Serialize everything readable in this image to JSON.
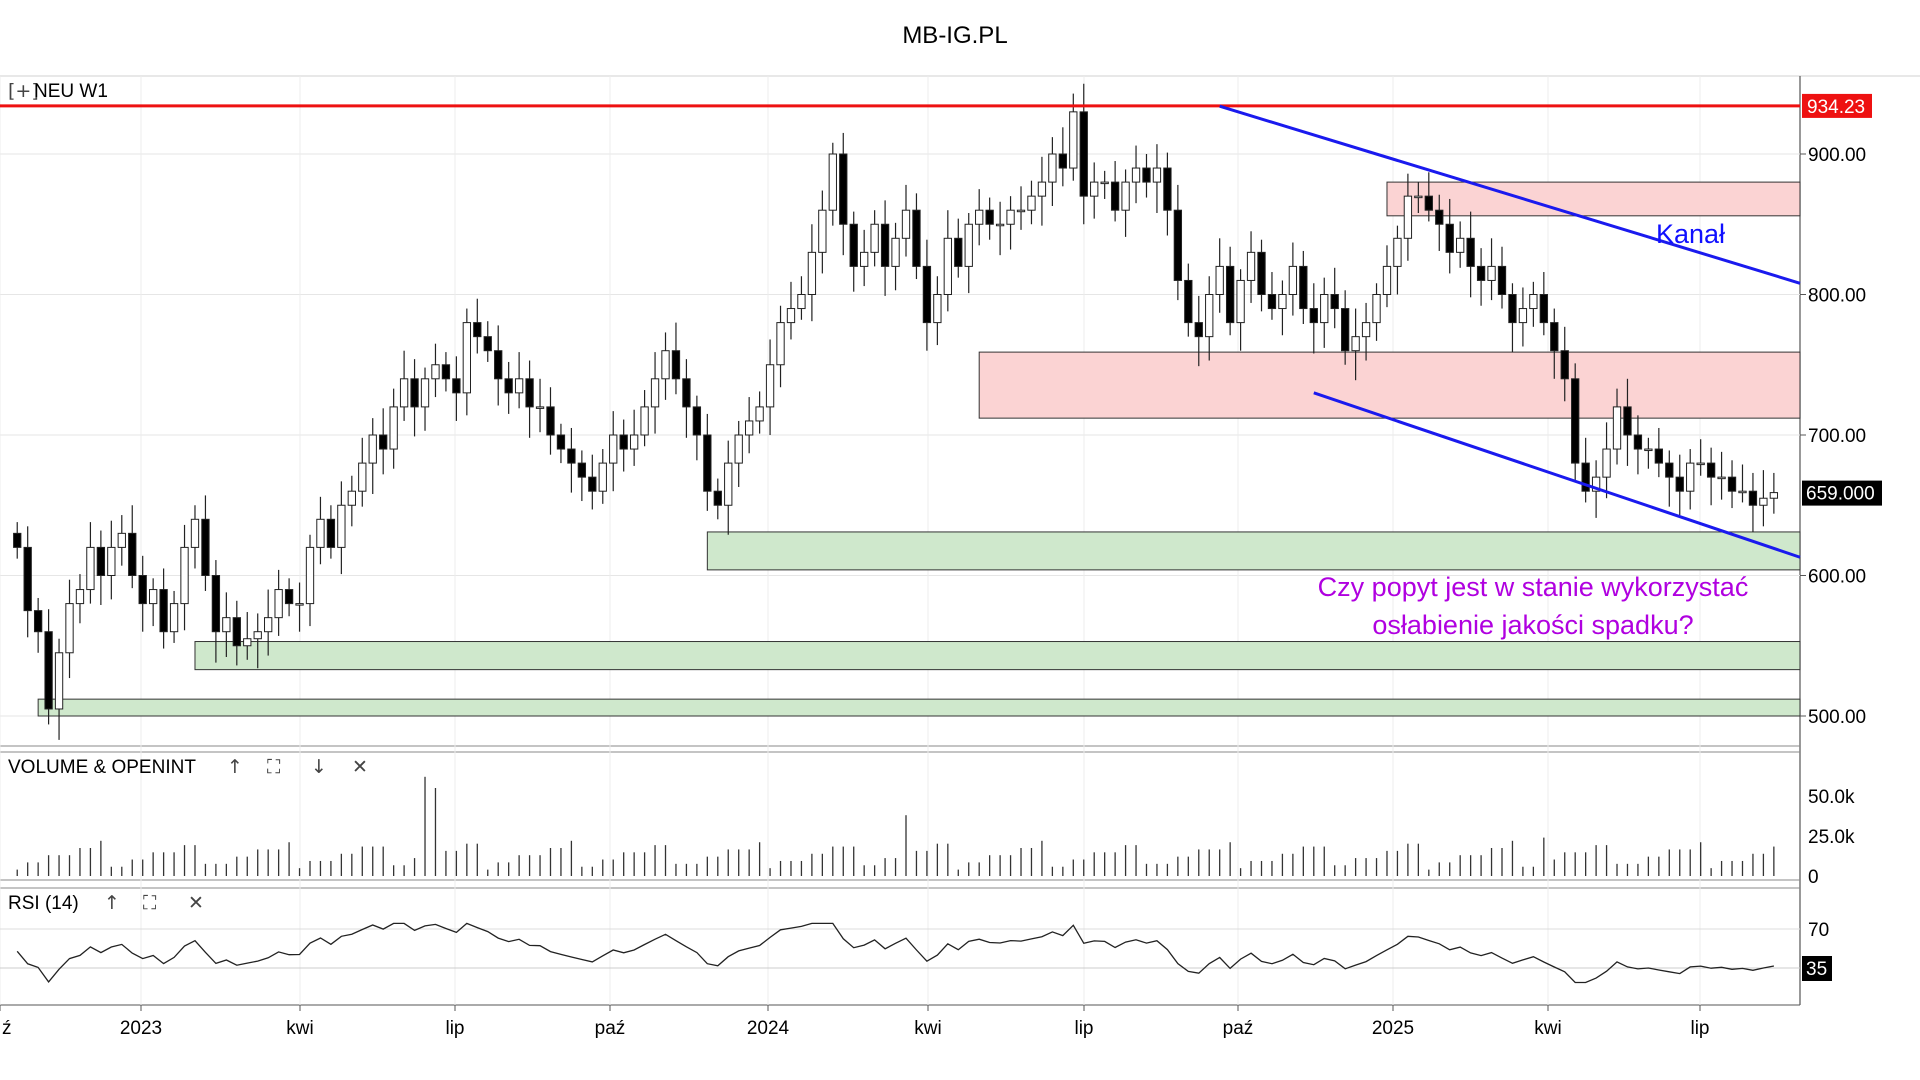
{
  "header": {
    "title": "MB-IG.PL"
  },
  "panels": {
    "price": {
      "label": "NEU  W1",
      "collapse_icon": "[+]"
    },
    "volume": {
      "label": "VOLUME & OPENINT"
    },
    "rsi": {
      "label": "RSI (14)"
    },
    "icons": {
      "up": "↑",
      "expand": "⛶",
      "down": "↓",
      "close": "✕"
    }
  },
  "colors": {
    "resistance_line": "#ee1111",
    "channel": "#1a1aee",
    "supply_zone": "#fbd3d3",
    "demand_zone": "#cfe8cc",
    "annotation": "#b000e0",
    "bull_candle": "#ffffff",
    "bear_candle": "#000000"
  },
  "annotations": {
    "channel_label": "Kanał",
    "question_line1": "Czy popyt jest w stanie wykorzystać",
    "question_line2": "osłabienie jakości spadku?"
  },
  "chart_data": [
    {
      "type": "candlestick",
      "title": "NEU  W1",
      "x_axis_ticks": [
        "ź",
        "2023",
        "kwi",
        "lip",
        "paź",
        "2024",
        "kwi",
        "lip",
        "paź",
        "2025",
        "kwi",
        "lip"
      ],
      "y_axis_ticks": [
        "500.00",
        "600.00",
        "700.00",
        "800.00",
        "900.00"
      ],
      "ylim": [
        487,
        940
      ],
      "last_price": "659.000",
      "resistance": {
        "value": 934.23,
        "label": "934.23"
      },
      "zones": [
        {
          "kind": "supply",
          "from_week": 131,
          "to_week": 200,
          "low": 856,
          "high": 880
        },
        {
          "kind": "supply",
          "from_week": 92,
          "to_week": 200,
          "low": 712,
          "high": 759
        },
        {
          "kind": "demand",
          "from_week": 66,
          "to_week": 200,
          "low": 604,
          "high": 631
        },
        {
          "kind": "demand",
          "from_week": 17,
          "to_week": 200,
          "low": 533,
          "high": 553
        },
        {
          "kind": "demand",
          "from_week": 2,
          "to_week": 200,
          "low": 500,
          "high": 512
        }
      ],
      "channel_lines": [
        {
          "name": "upper",
          "from": [
            115,
            934
          ],
          "to": [
            200,
            808
          ]
        },
        {
          "name": "lower",
          "from": [
            124,
            730
          ],
          "to": [
            200,
            613
          ]
        }
      ],
      "closes": [
        620,
        575,
        560,
        505,
        545,
        580,
        590,
        620,
        600,
        620,
        630,
        600,
        580,
        590,
        560,
        580,
        620,
        640,
        600,
        560,
        570,
        550,
        555,
        560,
        570,
        590,
        580,
        580,
        620,
        640,
        620,
        650,
        660,
        680,
        700,
        690,
        720,
        740,
        720,
        740,
        750,
        740,
        730,
        780,
        770,
        760,
        740,
        730,
        740,
        720,
        720,
        700,
        690,
        680,
        670,
        660,
        680,
        700,
        690,
        700,
        720,
        740,
        760,
        740,
        720,
        700,
        660,
        650,
        680,
        700,
        710,
        720,
        750,
        780,
        790,
        800,
        830,
        860,
        900,
        850,
        820,
        830,
        850,
        820,
        840,
        860,
        820,
        780,
        800,
        840,
        820,
        850,
        860,
        850,
        850,
        860,
        860,
        870,
        880,
        900,
        890,
        930,
        870,
        880,
        880,
        860,
        880,
        890,
        880,
        890,
        860,
        810,
        780,
        770,
        800,
        820,
        780,
        810,
        830,
        800,
        790,
        800,
        820,
        790,
        780,
        800,
        790,
        760,
        770,
        780,
        800,
        820,
        840,
        870,
        870,
        860,
        850,
        830,
        840,
        820,
        810,
        820,
        800,
        780,
        790,
        800,
        780,
        760,
        740,
        680,
        660,
        670,
        690,
        720,
        700,
        690,
        690,
        680,
        670,
        660,
        680,
        680,
        670,
        670,
        660,
        660,
        650,
        655,
        659
      ],
      "volume": {
        "y_axis_ticks": [
          "0",
          "25.0k",
          "50.0k"
        ],
        "ylim": [
          0,
          65000
        ]
      },
      "rsi": {
        "y_axis_ticks": [
          "70"
        ],
        "last": "35",
        "ylim": [
          10,
          90
        ]
      }
    }
  ]
}
